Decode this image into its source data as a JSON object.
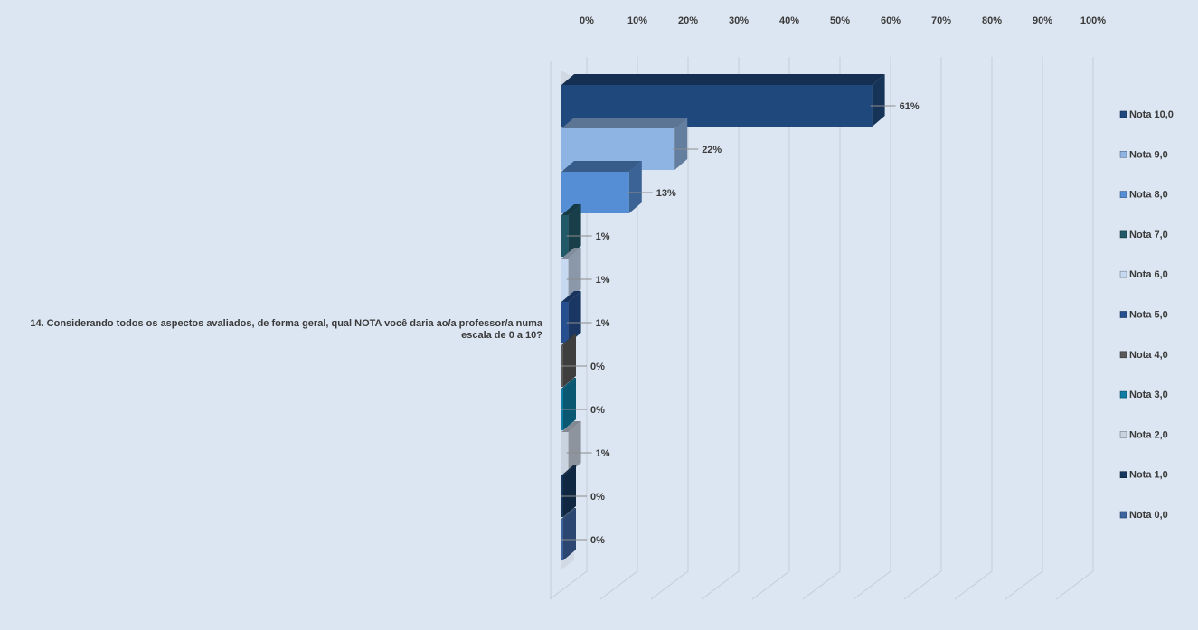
{
  "chart_data": {
    "type": "bar",
    "orientation": "horizontal",
    "category": "14. Considerando todos os aspectos avaliados, de forma geral, qual NOTA você daria ao/a professor/a numa escala de 0 a 10?",
    "x_ticks": [
      "0%",
      "10%",
      "20%",
      "30%",
      "40%",
      "50%",
      "60%",
      "70%",
      "80%",
      "90%",
      "100%"
    ],
    "xlim": [
      0,
      100
    ],
    "grid": true,
    "legend_position": "right",
    "series": [
      {
        "name": "Nota 10,0",
        "value": 61,
        "label": "61%",
        "color": "#1f497d"
      },
      {
        "name": "Nota 9,0",
        "value": 22,
        "label": "22%",
        "color": "#8eb4e3"
      },
      {
        "name": "Nota 8,0",
        "value": 13,
        "label": "13%",
        "color": "#558ed5"
      },
      {
        "name": "Nota 7,0",
        "value": 1,
        "label": "1%",
        "color": "#215968"
      },
      {
        "name": "Nota 6,0",
        "value": 1,
        "label": "1%",
        "color": "#c6d9f1"
      },
      {
        "name": "Nota 5,0",
        "value": 1,
        "label": "1%",
        "color": "#254f8f"
      },
      {
        "name": "Nota 4,0",
        "value": 0,
        "label": "0%",
        "color": "#595959"
      },
      {
        "name": "Nota 3,0",
        "value": 0,
        "label": "0%",
        "color": "#0e7ca3"
      },
      {
        "name": "Nota 2,0",
        "value": 1,
        "label": "1%",
        "color": "#c9d3e0"
      },
      {
        "name": "Nota 1,0",
        "value": 0,
        "label": "0%",
        "color": "#17375e"
      },
      {
        "name": "Nota 0,0",
        "value": 0,
        "label": "0%",
        "color": "#3e64a0"
      }
    ]
  }
}
